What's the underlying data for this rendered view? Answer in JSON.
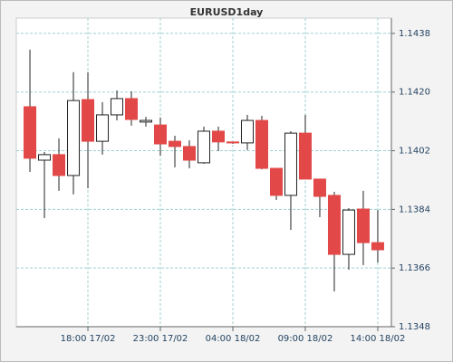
{
  "chart_data": {
    "type": "candlestick",
    "title": "EURUSD1day",
    "x": [
      14,
      15,
      16,
      17,
      18,
      19,
      20,
      21,
      22,
      23,
      24,
      25,
      26,
      27,
      28,
      29,
      30,
      31,
      32,
      33,
      34,
      35,
      36,
      37,
      38
    ],
    "open": [
      1.14155,
      1.13991,
      1.14008,
      1.13944,
      1.14177,
      1.14049,
      1.1413,
      1.1418,
      1.14108,
      1.14099,
      1.14049,
      1.14033,
      1.13983,
      1.1408,
      1.14047,
      1.14044,
      1.14113,
      1.13966,
      1.13883,
      1.14074,
      1.13933,
      1.13883,
      1.13702,
      1.13841,
      1.13738
    ],
    "high": [
      1.1433,
      1.14016,
      1.14058,
      1.14261,
      1.14261,
      1.14169,
      1.14205,
      1.14202,
      1.14124,
      1.14122,
      1.14066,
      1.14052,
      1.14094,
      1.14094,
      1.14047,
      1.1413,
      1.14127,
      1.13966,
      1.1408,
      1.1413,
      1.13933,
      1.13894,
      1.13844,
      1.13897,
      1.13838
    ],
    "low": [
      1.13955,
      1.13813,
      1.13897,
      1.13886,
      1.13905,
      1.14008,
      1.14113,
      1.14097,
      1.14094,
      1.14005,
      1.13969,
      1.13966,
      1.1398,
      1.14019,
      1.14041,
      1.14022,
      1.13963,
      1.13869,
      1.13777,
      1.13933,
      1.13816,
      1.13588,
      1.13655,
      1.13669,
      1.13677
    ],
    "close": [
      1.13997,
      1.14008,
      1.13944,
      1.14174,
      1.14049,
      1.1413,
      1.1418,
      1.14116,
      1.14113,
      1.14041,
      1.14033,
      1.13991,
      1.1408,
      1.14047,
      1.14044,
      1.14113,
      1.13966,
      1.13883,
      1.14074,
      1.13933,
      1.1388,
      1.13702,
      1.13838,
      1.13738,
      1.13716
    ],
    "up_color": "#ffffff",
    "down_color": "#e24848",
    "xlim": [
      13.06,
      38.94
    ],
    "xticks": [
      {
        "value": 18,
        "label": "18:00 17/02"
      },
      {
        "value": 23,
        "label": "23:00 17/02"
      },
      {
        "value": 28,
        "label": "04:00 18/02"
      },
      {
        "value": 33,
        "label": "09:00 18/02"
      },
      {
        "value": 38,
        "label": "14:00 18/02"
      }
    ],
    "ylim": [
      1.1348,
      1.14427
    ],
    "yticks": [
      1.1348,
      1.1366,
      1.1384,
      1.1402,
      {
        "value": 1.142,
        "label": "1.1420"
      },
      1.1438
    ],
    "grid": true
  }
}
